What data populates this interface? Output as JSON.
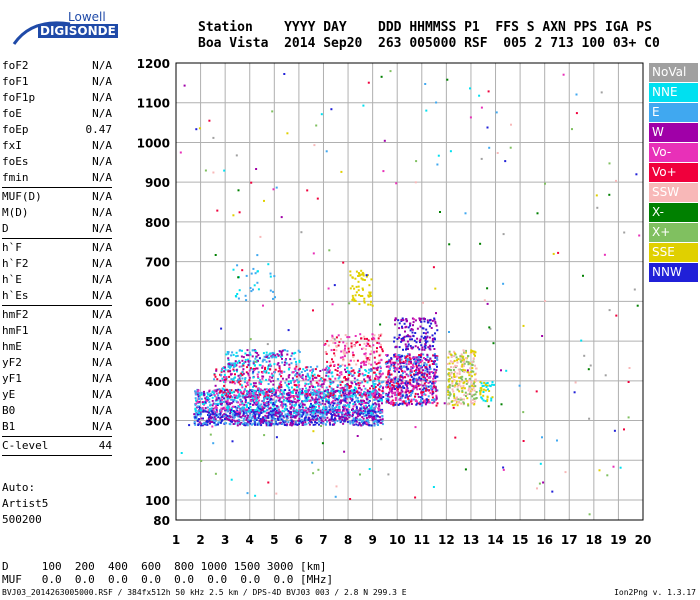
{
  "logo": {
    "line1": "Lowell",
    "line2": "DIGISONDE"
  },
  "header": {
    "row1": "Station    YYYY DAY    DDD HHMMSS P1  FFS S AXN PPS IGA PS",
    "row2": "Boa Vista  2014 Sep20  263 005000 RSF  005 2 713 100 03+ C0"
  },
  "params": [
    {
      "name": "foF2",
      "value": "N/A"
    },
    {
      "name": "foF1",
      "value": "N/A"
    },
    {
      "name": "foF1p",
      "value": "N/A"
    },
    {
      "name": "foE",
      "value": "N/A"
    },
    {
      "name": "foEp",
      "value": "0.47"
    },
    {
      "name": "fxI",
      "value": "N/A"
    },
    {
      "name": "foEs",
      "value": "N/A"
    },
    {
      "name": "fmin",
      "value": "N/A"
    },
    {
      "sep": true
    },
    {
      "name": "MUF(D)",
      "value": "N/A"
    },
    {
      "name": "M(D)",
      "value": "N/A"
    },
    {
      "name": "D",
      "value": "N/A"
    },
    {
      "sep": true
    },
    {
      "name": "h`F",
      "value": "N/A"
    },
    {
      "name": "h`F2",
      "value": "N/A"
    },
    {
      "name": "h`E",
      "value": "N/A"
    },
    {
      "name": "h`Es",
      "value": "N/A"
    },
    {
      "sep": true
    },
    {
      "name": "hmF2",
      "value": "N/A"
    },
    {
      "name": "hmF1",
      "value": "N/A"
    },
    {
      "name": "hmE",
      "value": "N/A"
    },
    {
      "name": "yF2",
      "value": "N/A"
    },
    {
      "name": "yF1",
      "value": "N/A"
    },
    {
      "name": "yE",
      "value": "N/A"
    },
    {
      "name": "B0",
      "value": "N/A"
    },
    {
      "name": "B1",
      "value": "N/A"
    },
    {
      "sep": true
    },
    {
      "name": "C-level",
      "value": "44"
    },
    {
      "sep": true
    }
  ],
  "auto": [
    "Auto:",
    "Artist5",
    "500200"
  ],
  "legend": [
    {
      "label": "NoVal",
      "color": "#a0a0a0"
    },
    {
      "label": "NNE",
      "color": "#00e0f0"
    },
    {
      "label": "E",
      "color": "#40a8f0"
    },
    {
      "label": "W",
      "color": "#a000a8"
    },
    {
      "label": "Vo-",
      "color": "#e830b8"
    },
    {
      "label": "Vo+",
      "color": "#f0003c"
    },
    {
      "label": "SSW",
      "color": "#f8b8b8"
    },
    {
      "label": "X-",
      "color": "#008000"
    },
    {
      "label": "X+",
      "color": "#80c060"
    },
    {
      "label": "SSE",
      "color": "#e0d000"
    },
    {
      "label": "NNW",
      "color": "#2020d8"
    }
  ],
  "table": {
    "row1": "D     100  200  400  600  800 1000 1500 3000 [km]",
    "row2": "MUF   0.0  0.0  0.0  0.0  0.0  0.0  0.0  0.0 [MHz]"
  },
  "footer": "BVJ03_2014263005000.RSF / 384fx512h 50 kHz 2.5 km / DPS-4D BVJ03 003 / 2.8 N 299.3 E",
  "version": "Ion2Png v. 1.3.17",
  "chart_data": {
    "type": "scatter",
    "xlim": [
      1,
      20
    ],
    "ylim": [
      80,
      1200
    ],
    "x_ticks": [
      "1",
      "2",
      "3",
      "4",
      "5",
      "6",
      "7",
      "8",
      "9",
      "10",
      "11",
      "12",
      "13",
      "14",
      "15",
      "16",
      "17",
      "18",
      "19",
      "20"
    ],
    "y_ticks": [
      "80",
      "100",
      "200",
      "300",
      "400",
      "500",
      "600",
      "700",
      "800",
      "900",
      "1000",
      "1100",
      "1200"
    ],
    "grid": true,
    "clusters": [
      {
        "x": [
          1.7,
          9.4
        ],
        "y": [
          290,
          330
        ],
        "colors": [
          10,
          3,
          2
        ],
        "n": 900
      },
      {
        "x": [
          1.7,
          9.4
        ],
        "y": [
          320,
          380
        ],
        "colors": [
          1,
          2,
          3,
          4,
          10
        ],
        "n": 1100
      },
      {
        "x": [
          2.5,
          9.4
        ],
        "y": [
          360,
          440
        ],
        "colors": [
          3,
          4,
          1,
          2,
          5
        ],
        "n": 700
      },
      {
        "x": [
          3.0,
          6.0
        ],
        "y": [
          440,
          480
        ],
        "colors": [
          2,
          3,
          1
        ],
        "n": 150
      },
      {
        "x": [
          7.0,
          9.4
        ],
        "y": [
          440,
          520
        ],
        "colors": [
          6,
          4,
          5
        ],
        "n": 150
      },
      {
        "x": [
          8.0,
          9.0
        ],
        "y": [
          590,
          680
        ],
        "colors": [
          9
        ],
        "n": 60
      },
      {
        "x": [
          9.5,
          11.6
        ],
        "y": [
          340,
          470
        ],
        "colors": [
          3,
          4,
          5,
          2,
          10
        ],
        "n": 650
      },
      {
        "x": [
          9.8,
          11.6
        ],
        "y": [
          480,
          560
        ],
        "colors": [
          10,
          3
        ],
        "n": 150
      },
      {
        "x": [
          12.0,
          13.2
        ],
        "y": [
          340,
          480
        ],
        "colors": [
          9,
          8,
          6
        ],
        "n": 260
      },
      {
        "x": [
          13.3,
          13.9
        ],
        "y": [
          350,
          400
        ],
        "colors": [
          9,
          1
        ],
        "n": 40
      },
      {
        "x": [
          3.2,
          5.0
        ],
        "y": [
          600,
          700
        ],
        "colors": [
          2,
          1
        ],
        "n": 30
      },
      {
        "x": [
          1.0,
          20.0
        ],
        "y": [
          80,
          1200
        ],
        "colors": [
          0,
          1,
          2,
          3,
          4,
          5,
          6,
          7,
          8,
          9,
          10
        ],
        "n": 220
      }
    ]
  }
}
